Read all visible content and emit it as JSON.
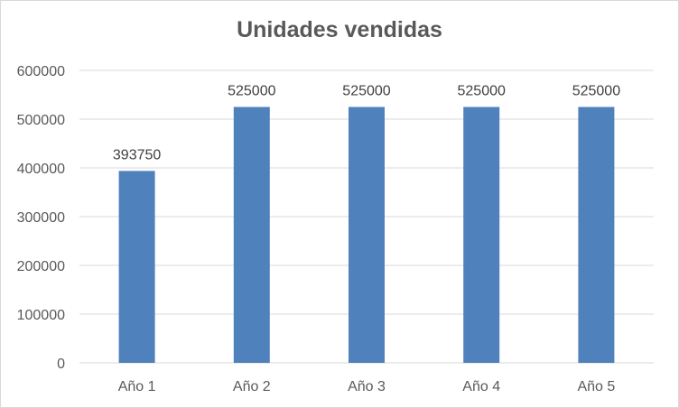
{
  "chart_data": {
    "type": "bar",
    "title": "Unidades vendidas",
    "xlabel": "",
    "ylabel": "",
    "categories": [
      "Año 1",
      "Año 2",
      "Año 3",
      "Año 4",
      "Año 5"
    ],
    "series": [
      {
        "values": [
          393750,
          525000,
          525000,
          525000,
          525000
        ]
      }
    ],
    "data_labels": [
      "393750",
      "525000",
      "525000",
      "525000",
      "525000"
    ],
    "yticks": [
      "0",
      "100000",
      "200000",
      "300000",
      "400000",
      "500000",
      "600000"
    ],
    "ylim": [
      0,
      600000
    ],
    "grid": true,
    "legend": "none",
    "colors": {
      "bar": "#4f81bd",
      "grid": "#d9d9d9",
      "text": "#595959"
    }
  }
}
